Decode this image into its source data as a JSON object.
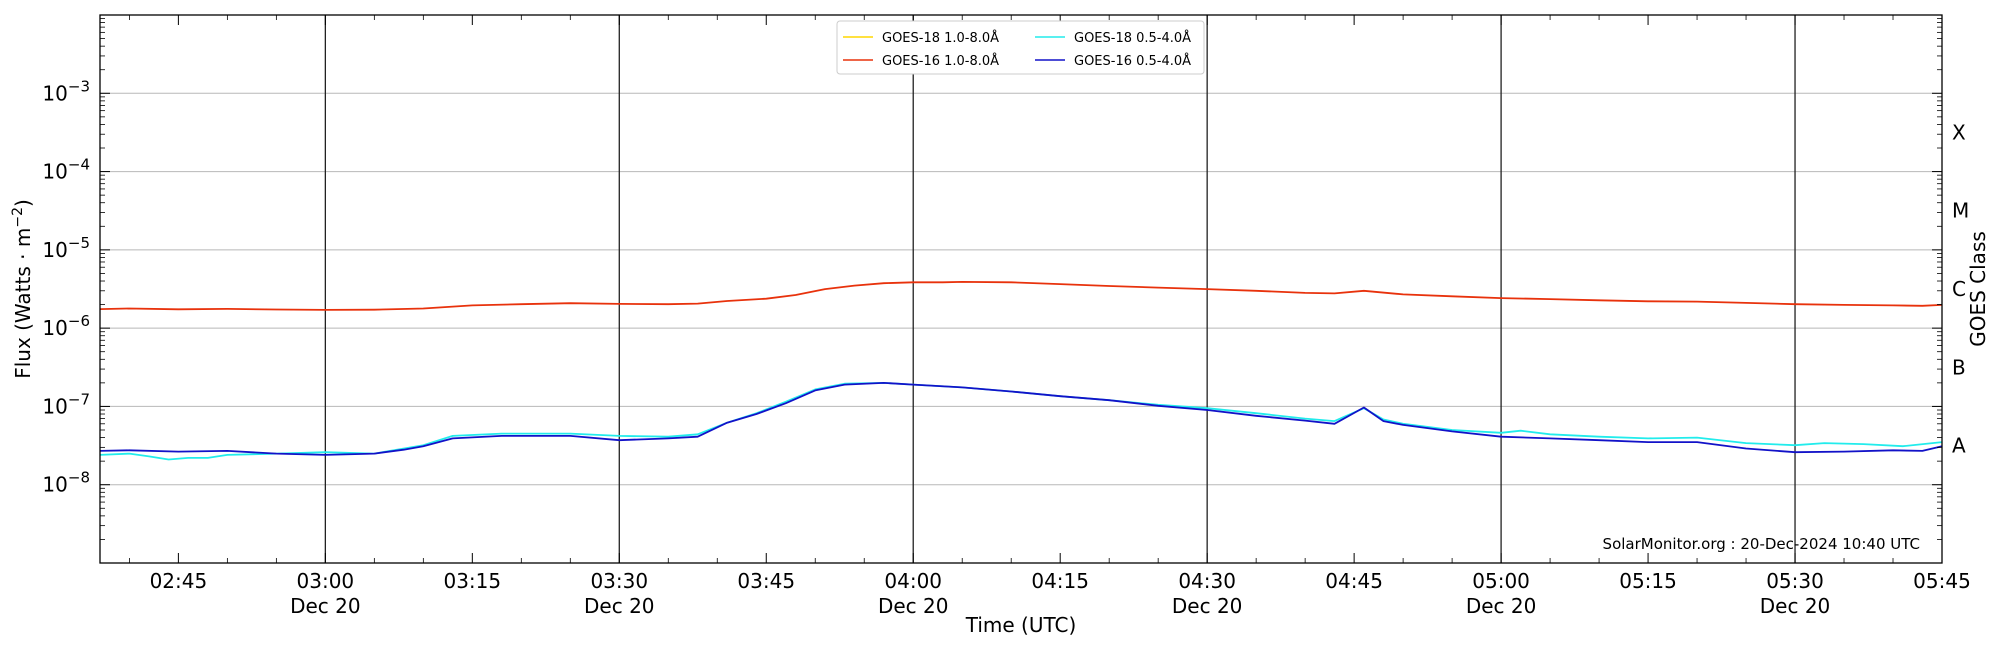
{
  "chart_data": {
    "type": "line",
    "xlabel": "Time (UTC)",
    "ylabel_main": "Flux (Watts · m",
    "ylabel_sup": "−2",
    "ylabel_close": ")",
    "ylabel_right": "GOES Class",
    "credit": "SolarMonitor.org : 20-Dec-2024 10:40 UTC",
    "xlim": [
      "02:37",
      "05:45"
    ],
    "ylim_log10": [
      -9,
      -7.0
    ],
    "y_log_range": [
      -9.0,
      -2.0
    ],
    "log_scale_y": true,
    "grid": "horizontal at decades",
    "legend_position": "top-center",
    "y_ticks": [
      {
        "value": -8,
        "base": "10",
        "exp": "−8"
      },
      {
        "value": -7,
        "base": "10",
        "exp": "−7"
      },
      {
        "value": -6,
        "base": "10",
        "exp": "−6"
      },
      {
        "value": -5,
        "base": "10",
        "exp": "−5"
      },
      {
        "value": -4,
        "base": "10",
        "exp": "−4"
      },
      {
        "value": -3,
        "base": "10",
        "exp": "−3"
      }
    ],
    "goes_classes": [
      {
        "label": "A",
        "value": -7.5
      },
      {
        "label": "B",
        "value": -6.5
      },
      {
        "label": "C",
        "value": -5.5
      },
      {
        "label": "M",
        "value": -4.5
      },
      {
        "label": "X",
        "value": -3.5
      }
    ],
    "x_ticks": [
      {
        "time": "02:45",
        "label": "02:45",
        "sub": ""
      },
      {
        "time": "03:00",
        "label": "03:00",
        "sub": "Dec 20"
      },
      {
        "time": "03:15",
        "label": "03:15",
        "sub": ""
      },
      {
        "time": "03:30",
        "label": "03:30",
        "sub": "Dec 20"
      },
      {
        "time": "03:45",
        "label": "03:45",
        "sub": ""
      },
      {
        "time": "04:00",
        "label": "04:00",
        "sub": "Dec 20"
      },
      {
        "time": "04:15",
        "label": "04:15",
        "sub": ""
      },
      {
        "time": "04:30",
        "label": "04:30",
        "sub": "Dec 20"
      },
      {
        "time": "04:45",
        "label": "04:45",
        "sub": ""
      },
      {
        "time": "05:00",
        "label": "05:00",
        "sub": "Dec 20"
      },
      {
        "time": "05:15",
        "label": "05:15",
        "sub": ""
      },
      {
        "time": "05:30",
        "label": "05:30",
        "sub": "Dec 20"
      },
      {
        "time": "05:45",
        "label": "05:45",
        "sub": ""
      }
    ],
    "vertical_lines": [
      "03:00",
      "03:30",
      "04:00",
      "04:30",
      "05:00",
      "05:30"
    ],
    "series": [
      {
        "name": "GOES-18 1.0-8.0Å",
        "color": "#ffd700",
        "points": []
      },
      {
        "name": "GOES-16 1.0-8.0Å",
        "color": "#e8320c",
        "points": [
          [
            "02:37",
            1.75e-06
          ],
          [
            "02:40",
            1.78e-06
          ],
          [
            "02:45",
            1.74e-06
          ],
          [
            "02:50",
            1.76e-06
          ],
          [
            "02:55",
            1.73e-06
          ],
          [
            "03:00",
            1.71e-06
          ],
          [
            "03:05",
            1.72e-06
          ],
          [
            "03:10",
            1.78e-06
          ],
          [
            "03:15",
            1.95e-06
          ],
          [
            "03:20",
            2.02e-06
          ],
          [
            "03:25",
            2.08e-06
          ],
          [
            "03:30",
            2.04e-06
          ],
          [
            "03:35",
            2.02e-06
          ],
          [
            "03:38",
            2.06e-06
          ],
          [
            "03:41",
            2.22e-06
          ],
          [
            "03:45",
            2.38e-06
          ],
          [
            "03:48",
            2.65e-06
          ],
          [
            "03:51",
            3.15e-06
          ],
          [
            "03:54",
            3.5e-06
          ],
          [
            "03:57",
            3.75e-06
          ],
          [
            "04:00",
            3.85e-06
          ],
          [
            "04:03",
            3.85e-06
          ],
          [
            "04:05",
            3.9e-06
          ],
          [
            "04:10",
            3.85e-06
          ],
          [
            "04:15",
            3.65e-06
          ],
          [
            "04:20",
            3.45e-06
          ],
          [
            "04:25",
            3.3e-06
          ],
          [
            "04:30",
            3.15e-06
          ],
          [
            "04:35",
            3e-06
          ],
          [
            "04:40",
            2.82e-06
          ],
          [
            "04:43",
            2.78e-06
          ],
          [
            "04:46",
            3e-06
          ],
          [
            "04:50",
            2.7e-06
          ],
          [
            "04:55",
            2.55e-06
          ],
          [
            "05:00",
            2.42e-06
          ],
          [
            "05:05",
            2.35e-06
          ],
          [
            "05:10",
            2.27e-06
          ],
          [
            "05:15",
            2.2e-06
          ],
          [
            "05:20",
            2.18e-06
          ],
          [
            "05:25",
            2.1e-06
          ],
          [
            "05:30",
            2.02e-06
          ],
          [
            "05:35",
            1.98e-06
          ],
          [
            "05:40",
            1.95e-06
          ],
          [
            "05:43",
            1.93e-06
          ],
          [
            "05:45",
            1.98e-06
          ]
        ]
      },
      {
        "name": "GOES-18 0.5-4.0Å",
        "color": "#22ecec",
        "points": [
          [
            "02:37",
            2.4e-08
          ],
          [
            "02:40",
            2.5e-08
          ],
          [
            "02:42",
            2.3e-08
          ],
          [
            "02:44",
            2.1e-08
          ],
          [
            "02:46",
            2.2e-08
          ],
          [
            "02:48",
            2.2e-08
          ],
          [
            "02:50",
            2.4e-08
          ],
          [
            "02:55",
            2.5e-08
          ],
          [
            "03:00",
            2.6e-08
          ],
          [
            "03:05",
            2.5e-08
          ],
          [
            "03:10",
            3.2e-08
          ],
          [
            "03:13",
            4.2e-08
          ],
          [
            "03:18",
            4.5e-08
          ],
          [
            "03:25",
            4.5e-08
          ],
          [
            "03:30",
            4.2e-08
          ],
          [
            "03:35",
            4.1e-08
          ],
          [
            "03:38",
            4.4e-08
          ],
          [
            "03:41",
            6.2e-08
          ],
          [
            "03:44",
            8.2e-08
          ],
          [
            "03:47",
            1.15e-07
          ],
          [
            "03:50",
            1.65e-07
          ],
          [
            "03:53",
            1.95e-07
          ],
          [
            "03:57",
            2e-07
          ],
          [
            "04:00",
            1.9e-07
          ],
          [
            "04:05",
            1.75e-07
          ],
          [
            "04:10",
            1.55e-07
          ],
          [
            "04:15",
            1.35e-07
          ],
          [
            "04:20",
            1.2e-07
          ],
          [
            "04:25",
            1.05e-07
          ],
          [
            "04:30",
            9.5e-08
          ],
          [
            "04:35",
            8.2e-08
          ],
          [
            "04:40",
            7e-08
          ],
          [
            "04:43",
            6.5e-08
          ],
          [
            "04:46",
            9.5e-08
          ],
          [
            "04:48",
            6.8e-08
          ],
          [
            "04:50",
            6e-08
          ],
          [
            "04:55",
            5e-08
          ],
          [
            "05:00",
            4.6e-08
          ],
          [
            "05:02",
            4.9e-08
          ],
          [
            "05:05",
            4.4e-08
          ],
          [
            "05:10",
            4.1e-08
          ],
          [
            "05:15",
            3.9e-08
          ],
          [
            "05:20",
            4e-08
          ],
          [
            "05:25",
            3.4e-08
          ],
          [
            "05:30",
            3.2e-08
          ],
          [
            "05:33",
            3.4e-08
          ],
          [
            "05:37",
            3.3e-08
          ],
          [
            "05:41",
            3.1e-08
          ],
          [
            "05:45",
            3.5e-08
          ]
        ]
      },
      {
        "name": "GOES-16 0.5-4.0Å",
        "color": "#1212c8",
        "points": [
          [
            "02:37",
            2.7e-08
          ],
          [
            "02:40",
            2.75e-08
          ],
          [
            "02:45",
            2.65e-08
          ],
          [
            "02:50",
            2.7e-08
          ],
          [
            "02:55",
            2.5e-08
          ],
          [
            "03:00",
            2.4e-08
          ],
          [
            "03:05",
            2.5e-08
          ],
          [
            "03:08",
            2.8e-08
          ],
          [
            "03:10",
            3.1e-08
          ],
          [
            "03:13",
            3.9e-08
          ],
          [
            "03:18",
            4.2e-08
          ],
          [
            "03:25",
            4.2e-08
          ],
          [
            "03:30",
            3.7e-08
          ],
          [
            "03:35",
            3.9e-08
          ],
          [
            "03:38",
            4.1e-08
          ],
          [
            "03:41",
            6.2e-08
          ],
          [
            "03:44",
            8e-08
          ],
          [
            "03:47",
            1.1e-07
          ],
          [
            "03:50",
            1.6e-07
          ],
          [
            "03:53",
            1.9e-07
          ],
          [
            "03:57",
            2e-07
          ],
          [
            "04:00",
            1.9e-07
          ],
          [
            "04:05",
            1.75e-07
          ],
          [
            "04:10",
            1.55e-07
          ],
          [
            "04:15",
            1.35e-07
          ],
          [
            "04:20",
            1.2e-07
          ],
          [
            "04:25",
            1.02e-07
          ],
          [
            "04:30",
            9e-08
          ],
          [
            "04:35",
            7.6e-08
          ],
          [
            "04:40",
            6.6e-08
          ],
          [
            "04:43",
            6e-08
          ],
          [
            "04:46",
            9.7e-08
          ],
          [
            "04:48",
            6.5e-08
          ],
          [
            "04:50",
            5.8e-08
          ],
          [
            "04:55",
            4.8e-08
          ],
          [
            "05:00",
            4.1e-08
          ],
          [
            "05:05",
            3.9e-08
          ],
          [
            "05:10",
            3.7e-08
          ],
          [
            "05:15",
            3.5e-08
          ],
          [
            "05:20",
            3.5e-08
          ],
          [
            "05:25",
            2.9e-08
          ],
          [
            "05:30",
            2.6e-08
          ],
          [
            "05:35",
            2.65e-08
          ],
          [
            "05:40",
            2.75e-08
          ],
          [
            "05:43",
            2.7e-08
          ],
          [
            "05:45",
            3.1e-08
          ]
        ]
      }
    ]
  }
}
